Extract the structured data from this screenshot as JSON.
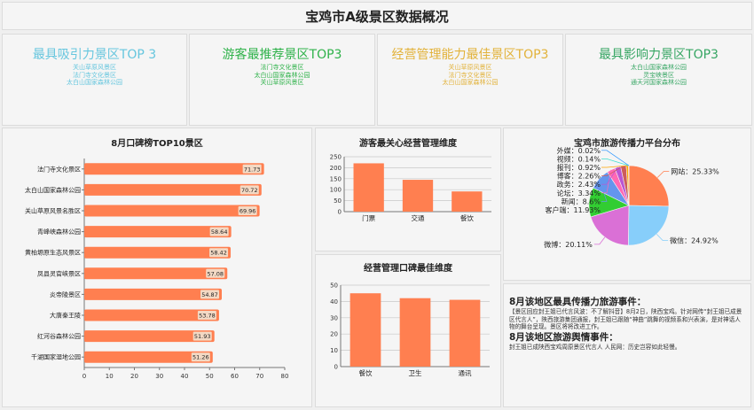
{
  "header": {
    "title": "宝鸡市A级景区数据概况"
  },
  "top_cards": [
    {
      "heading": "最具吸引力景区TOP 3",
      "color": "#66c6de",
      "items": [
        "关山草原风景区",
        "法门寺文化景区",
        "太白山国家森林公园"
      ]
    },
    {
      "heading": "游客最推荐景区TOP3",
      "color": "#2fb24a",
      "items": [
        "法门寺文化景区",
        "太白山国家森林公园",
        "关山草原风景区"
      ]
    },
    {
      "heading": "经营管理能力最佳景区TOP3",
      "color": "#e2b23a",
      "items": [
        "关山草原风景区",
        "法门寺文化景区",
        "太白山国家森林公园"
      ]
    },
    {
      "heading": "最具影响力景区TOP3",
      "color": "#37a664",
      "items": [
        "太白山国家森林公园",
        "灵宝峡景区",
        "通天河国家森林公园"
      ]
    }
  ],
  "colors": {
    "bar": "#ff7f50",
    "bar_label_bg": "#f3d9c4"
  },
  "chart_data": [
    {
      "id": "top10",
      "type": "bar",
      "orientation": "horizontal",
      "title": "8月口碑榜TOP10景区",
      "categories": [
        "法门寺文化景区",
        "太白山国家森林公园",
        "关山草原风景名胜区",
        "青峰峡森林公园",
        "黄柏塬原生态风景区",
        "凤县灵官峡景区",
        "炎帝陵景区",
        "大唐秦王陵",
        "红河谷森林公园",
        "千湖国家湿地公园"
      ],
      "values": [
        71.73,
        70.72,
        69.96,
        58.64,
        58.42,
        57.08,
        54.87,
        53.78,
        51.93,
        51.26
      ],
      "xlim": [
        0,
        80
      ],
      "xticks": [
        0,
        10,
        20,
        30,
        40,
        50,
        60,
        70,
        80
      ]
    },
    {
      "id": "concern",
      "type": "bar",
      "title": "游客最关心经营管理维度",
      "categories": [
        "门票",
        "交通",
        "餐饮"
      ],
      "values": [
        220,
        145,
        92
      ],
      "ylim": [
        0,
        250
      ],
      "yticks": [
        0,
        50,
        100,
        150,
        200,
        250
      ]
    },
    {
      "id": "best",
      "type": "bar",
      "title": "经营管理口碑最佳维度",
      "categories": [
        "餐饮",
        "卫生",
        "通讯"
      ],
      "values": [
        45,
        42,
        41
      ],
      "ylim": [
        0,
        50
      ],
      "yticks": [
        0,
        10,
        20,
        30,
        40,
        50
      ]
    },
    {
      "id": "platform",
      "type": "pie",
      "title": "宝鸡市旅游传播力平台分布",
      "slices": [
        {
          "label": "网站",
          "value": 25.33,
          "display": "网站：25.33%",
          "color": "#ff7f50"
        },
        {
          "label": "微信",
          "value": 24.92,
          "display": "微信：24.92%",
          "color": "#87cefa"
        },
        {
          "label": "微博",
          "value": 20.11,
          "display": "微博：20.11%",
          "color": "#da70d6"
        },
        {
          "label": "客户端",
          "value": 11.93,
          "display": "客户端：11.93%",
          "color": "#32cd32"
        },
        {
          "label": "新闻",
          "value": 8.6,
          "display": "新闻：8.6%",
          "color": "#6495ed"
        },
        {
          "label": "论坛",
          "value": 3.34,
          "display": "论坛：3.34%",
          "color": "#ff69b4"
        },
        {
          "label": "政务",
          "value": 2.43,
          "display": "政务：2.43%",
          "color": "#ba55d3"
        },
        {
          "label": "博客",
          "value": 2.26,
          "display": "博客：2.26%",
          "color": "#cd5c5c"
        },
        {
          "label": "报刊",
          "value": 0.92,
          "display": "报刊：0.92%",
          "color": "#ffa500"
        },
        {
          "label": "视频",
          "value": 0.14,
          "display": "视频：0.14%",
          "color": "#40e0d0"
        },
        {
          "label": "外媒",
          "value": 0.02,
          "display": "外媒：0.02%",
          "color": "#1e90ff"
        }
      ]
    }
  ],
  "news": {
    "event_heading": "8月该地区最具传播力旅游事件：",
    "event_body": "【景区回应封王姐已代言风波：不了解抖音】8月2日，陕西宝鸡。针对网传“封王姐已成景区代言人”，陕西旅游集团通报，封王姐已跟随“神曲”跳舞的视频系和兴表演，是对神话人物的舞台呈现。景区将将改进工作。",
    "opinion_heading": "8月该地区旅游舆情事件：",
    "opinion_body": "封王姐已成陕西宝鸡周原景区代言人 人民网：历史岂容如此轻慢。"
  }
}
